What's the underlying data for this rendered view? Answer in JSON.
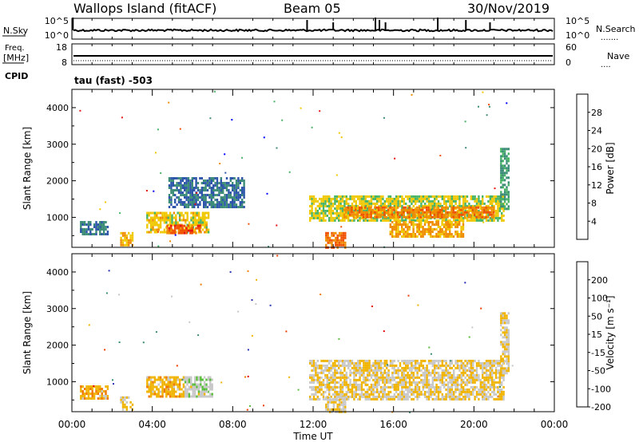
{
  "header": {
    "title": "Wallops Island (fitACF)",
    "beam": "Beam 05",
    "date": "30/Nov/2019"
  },
  "nsky_panel": {
    "left_label": "N.Sky",
    "left_ticks": [
      "10^5",
      "10^0"
    ],
    "right_ticks": [
      "10^5",
      "10^0"
    ],
    "right_label": "N.Search",
    "right_legend": "......."
  },
  "freq_panel": {
    "left_label_line1": "Freq.",
    "left_label_line2": "[MHz]",
    "left_ticks": [
      "18",
      "8"
    ],
    "right_ticks": [
      "60",
      "0"
    ],
    "right_label": "Nave",
    "right_legend": "....",
    "cpid_label": "CPID",
    "cpid_value": "tau (fast) -503"
  },
  "power_panel": {
    "ylabel": "Slant Range [km]",
    "y_ticks": [
      "4000",
      "3000",
      "2000",
      "1000"
    ],
    "colorbar_label": "Power [dB]",
    "colorbar_ticks": [
      "28",
      "24",
      "20",
      "16",
      "12",
      "8",
      "4"
    ]
  },
  "velocity_panel": {
    "ylabel": "Slant Range [km]",
    "y_ticks": [
      "4000",
      "3000",
      "2000",
      "1000"
    ],
    "colorbar_label": "Velocity [m s⁻¹]",
    "colorbar_ticks": [
      "200",
      "100",
      "50",
      "15",
      "-15",
      "-50",
      "-100",
      "-200"
    ]
  },
  "x_axis": {
    "ticks": [
      "00:00",
      "04:00",
      "08:00",
      "12:00",
      "16:00",
      "20:00",
      "00:00"
    ],
    "label": "Time UT"
  },
  "colors": {
    "power_scale": [
      "#0000ff",
      "#2d55aa",
      "#3c8c78",
      "#46b464",
      "#f0c800",
      "#f08c00",
      "#f05000",
      "#e61414"
    ],
    "velocity_scale": [
      "#2832b4",
      "#3c8c6e",
      "#5abe3c",
      "#c8c8c8",
      "#f0b400",
      "#f07800",
      "#f03c00",
      "#e60000"
    ]
  },
  "chart_data": {
    "type": "heatmap",
    "x": {
      "unit": "hours UT",
      "range": [
        0,
        24
      ]
    },
    "y": {
      "label": "Slant Range [km]",
      "range": [
        180,
        4500
      ]
    },
    "panels": [
      {
        "name": "power",
        "unit": "dB",
        "color_range": [
          0,
          32
        ],
        "regions": [
          {
            "t0": 0.4,
            "t1": 1.8,
            "r0": 520,
            "r1": 900,
            "value": 9
          },
          {
            "t0": 2.4,
            "t1": 3.0,
            "r0": 250,
            "r1": 600,
            "value": 20
          },
          {
            "t0": 3.7,
            "t1": 6.8,
            "r0": 600,
            "r1": 1150,
            "value": 18
          },
          {
            "t0": 4.7,
            "t1": 6.4,
            "r0": 600,
            "r1": 800,
            "value": 26
          },
          {
            "t0": 4.8,
            "t1": 8.6,
            "r0": 1300,
            "r1": 2100,
            "value": 8
          },
          {
            "t0": 11.8,
            "t1": 21.5,
            "r0": 900,
            "r1": 1600,
            "value": 17
          },
          {
            "t0": 13.5,
            "t1": 21.0,
            "r0": 1000,
            "r1": 1300,
            "value": 23
          },
          {
            "t0": 12.6,
            "t1": 13.6,
            "r0": 200,
            "r1": 600,
            "value": 24
          },
          {
            "t0": 15.8,
            "t1": 19.5,
            "r0": 500,
            "r1": 900,
            "value": 21
          },
          {
            "t0": 21.3,
            "t1": 21.7,
            "r0": 1200,
            "r1": 2900,
            "value": 12
          }
        ]
      },
      {
        "name": "velocity",
        "unit": "m/s",
        "color_range": [
          -250,
          250
        ],
        "regions": [
          {
            "t0": 0.4,
            "t1": 1.8,
            "r0": 520,
            "r1": 900,
            "value": 35
          },
          {
            "t0": 2.4,
            "t1": 3.0,
            "r0": 250,
            "r1": 600,
            "value": 0
          },
          {
            "t0": 3.7,
            "t1": 5.6,
            "r0": 600,
            "r1": 1150,
            "value": 35
          },
          {
            "t0": 5.6,
            "t1": 7.0,
            "r0": 600,
            "r1": 1150,
            "value": -40
          },
          {
            "t0": 11.8,
            "t1": 21.5,
            "r0": 500,
            "r1": 1600,
            "value": 0
          },
          {
            "t0": 12.6,
            "t1": 13.6,
            "r0": 200,
            "r1": 600,
            "value": 0
          },
          {
            "t0": 21.3,
            "t1": 21.7,
            "r0": 1200,
            "r1": 2900,
            "value": 0
          }
        ]
      }
    ]
  }
}
